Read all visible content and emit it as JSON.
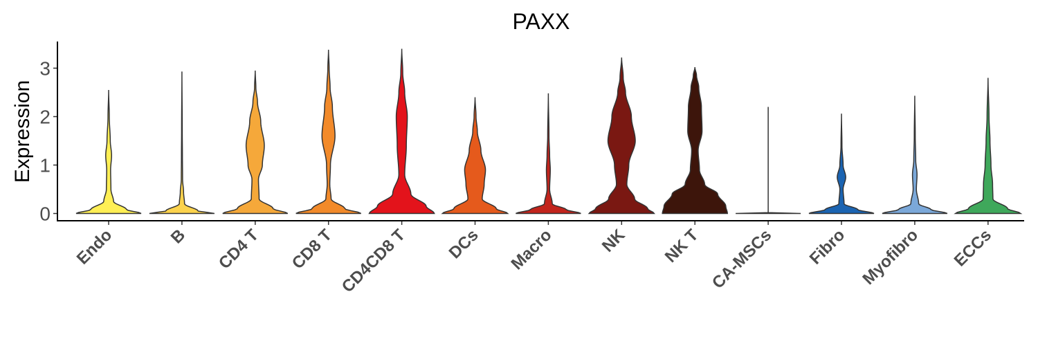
{
  "chart_data": {
    "type": "violin",
    "title": "PAXX",
    "xlabel": "",
    "ylabel": "Expression",
    "ylim": [
      -0.15,
      3.55
    ],
    "yticks": [
      0,
      1,
      2,
      3
    ],
    "grid": false,
    "legend": "none",
    "categories": [
      "Endo",
      "B",
      "CD4 T",
      "CD8 T",
      "CD4CD8 T",
      "DCs",
      "Macro",
      "NK",
      "NK T",
      "CA-MSCs",
      "Fibro",
      "Myofibro",
      "ECCs"
    ],
    "violins": [
      {
        "category": "Endo",
        "color": "#ffef55",
        "max": 2.55,
        "profile": [
          [
            0,
            1
          ],
          [
            0.08,
            0.55
          ],
          [
            0.25,
            0.15
          ],
          [
            0.5,
            0.07
          ],
          [
            0.9,
            0.06
          ],
          [
            1.2,
            0.09
          ],
          [
            1.5,
            0.05
          ],
          [
            2.0,
            0.02
          ],
          [
            2.55,
            0
          ]
        ]
      },
      {
        "category": "B",
        "color": "#fcd34d",
        "max": 2.93,
        "profile": [
          [
            0,
            1
          ],
          [
            0.05,
            0.5
          ],
          [
            0.2,
            0.08
          ],
          [
            0.45,
            0.05
          ],
          [
            0.7,
            0.02
          ],
          [
            1.2,
            0.015
          ],
          [
            1.7,
            0.01
          ],
          [
            2.93,
            0
          ]
        ]
      },
      {
        "category": "CD4 T",
        "color": "#f5a83a",
        "max": 2.95,
        "profile": [
          [
            0,
            1
          ],
          [
            0.1,
            0.55
          ],
          [
            0.3,
            0.12
          ],
          [
            0.7,
            0.1
          ],
          [
            1.0,
            0.22
          ],
          [
            1.4,
            0.28
          ],
          [
            1.9,
            0.17
          ],
          [
            2.3,
            0.07
          ],
          [
            2.6,
            0.02
          ],
          [
            2.95,
            0
          ]
        ]
      },
      {
        "category": "CD8 T",
        "color": "#f28a2a",
        "max": 3.38,
        "profile": [
          [
            0,
            1
          ],
          [
            0.1,
            0.5
          ],
          [
            0.3,
            0.08
          ],
          [
            0.6,
            0.04
          ],
          [
            1.0,
            0.06
          ],
          [
            1.6,
            0.2
          ],
          [
            2.2,
            0.12
          ],
          [
            2.6,
            0.05
          ],
          [
            3.0,
            0.02
          ],
          [
            3.38,
            0
          ]
        ]
      },
      {
        "category": "CD4CD8 T",
        "color": "#e3131b",
        "max": 3.4,
        "profile": [
          [
            0,
            1
          ],
          [
            0.15,
            0.75
          ],
          [
            0.4,
            0.28
          ],
          [
            0.8,
            0.09
          ],
          [
            1.4,
            0.14
          ],
          [
            2.0,
            0.17
          ],
          [
            2.5,
            0.09
          ],
          [
            2.9,
            0.03
          ],
          [
            3.4,
            0
          ]
        ]
      },
      {
        "category": "DCs",
        "color": "#e55a1c",
        "max": 2.4,
        "profile": [
          [
            0,
            1
          ],
          [
            0.1,
            0.65
          ],
          [
            0.3,
            0.22
          ],
          [
            0.6,
            0.28
          ],
          [
            0.9,
            0.32
          ],
          [
            1.3,
            0.18
          ],
          [
            1.7,
            0.07
          ],
          [
            2.0,
            0.03
          ],
          [
            2.4,
            0
          ]
        ]
      },
      {
        "category": "Macro",
        "color": "#c2241c",
        "max": 2.48,
        "profile": [
          [
            0,
            1
          ],
          [
            0.08,
            0.55
          ],
          [
            0.2,
            0.12
          ],
          [
            0.5,
            0.04
          ],
          [
            0.9,
            0.06
          ],
          [
            1.2,
            0.04
          ],
          [
            1.6,
            0.02
          ],
          [
            2.48,
            0
          ]
        ]
      },
      {
        "category": "NK",
        "color": "#7a1812",
        "max": 3.22,
        "profile": [
          [
            0,
            1
          ],
          [
            0.1,
            0.8
          ],
          [
            0.3,
            0.4
          ],
          [
            0.6,
            0.16
          ],
          [
            1.0,
            0.22
          ],
          [
            1.5,
            0.42
          ],
          [
            2.0,
            0.3
          ],
          [
            2.5,
            0.12
          ],
          [
            2.8,
            0.05
          ],
          [
            3.22,
            0
          ]
        ]
      },
      {
        "category": "NK T",
        "color": "#3d150b",
        "max": 3.02,
        "profile": [
          [
            0,
            1
          ],
          [
            0.15,
            0.95
          ],
          [
            0.4,
            0.7
          ],
          [
            0.6,
            0.3
          ],
          [
            0.9,
            0.14
          ],
          [
            1.3,
            0.1
          ],
          [
            1.7,
            0.22
          ],
          [
            2.2,
            0.2
          ],
          [
            2.6,
            0.12
          ],
          [
            2.85,
            0.05
          ],
          [
            3.02,
            0
          ]
        ]
      },
      {
        "category": "CA-MSCs",
        "color": "#cccccc",
        "max": 2.2,
        "profile": [
          [
            0,
            1
          ],
          [
            0.005,
            0
          ],
          [
            2.2,
            0
          ]
        ]
      },
      {
        "category": "Fibro",
        "color": "#1b64b2",
        "max": 2.06,
        "profile": [
          [
            0,
            1
          ],
          [
            0.08,
            0.5
          ],
          [
            0.2,
            0.08
          ],
          [
            0.5,
            0.05
          ],
          [
            0.75,
            0.13
          ],
          [
            1.0,
            0.05
          ],
          [
            1.4,
            0.015
          ],
          [
            2.06,
            0
          ]
        ]
      },
      {
        "category": "Myofibro",
        "color": "#7ba8d9",
        "max": 2.43,
        "profile": [
          [
            0,
            1
          ],
          [
            0.08,
            0.5
          ],
          [
            0.2,
            0.12
          ],
          [
            0.5,
            0.05
          ],
          [
            0.8,
            0.07
          ],
          [
            1.1,
            0.03
          ],
          [
            1.6,
            0.015
          ],
          [
            2.43,
            0
          ]
        ]
      },
      {
        "category": "ECCs",
        "color": "#3fa85b",
        "max": 2.8,
        "profile": [
          [
            0,
            1
          ],
          [
            0.1,
            0.6
          ],
          [
            0.3,
            0.15
          ],
          [
            0.6,
            0.14
          ],
          [
            1.0,
            0.09
          ],
          [
            1.5,
            0.06
          ],
          [
            2.0,
            0.03
          ],
          [
            2.8,
            0
          ]
        ]
      }
    ]
  }
}
